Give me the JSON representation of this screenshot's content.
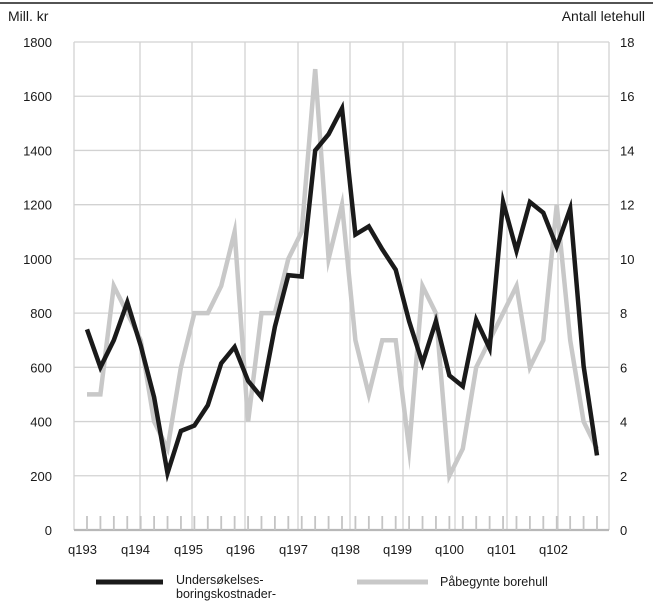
{
  "chart_data": {
    "type": "line",
    "title": "",
    "y_left_label": "Mill. kr",
    "y_right_label": "Antall letehull",
    "y_left_ticks": [
      "0",
      "200",
      "400",
      "600",
      "800",
      "1000",
      "1200",
      "1400",
      "1600",
      "1800"
    ],
    "y_right_ticks": [
      "0",
      "2",
      "4",
      "6",
      "8",
      "10",
      "12",
      "14",
      "16",
      "18"
    ],
    "ylim_left": [
      0,
      1800
    ],
    "ylim_right": [
      0,
      18
    ],
    "x_tick_labels": [
      "q193",
      "q194",
      "q195",
      "q196",
      "q197",
      "q198",
      "q199",
      "q100",
      "q101",
      "q102"
    ],
    "grid": true,
    "legend_position": "bottom",
    "series": [
      {
        "name": "Undersøkelses-boringskostnader-",
        "legend_lines": [
          "Undersøkelses-",
          "boringskostnader-"
        ],
        "axis": "left",
        "color": "#1a1a1a",
        "values": [
          740,
          600,
          700,
          840,
          680,
          490,
          210,
          365,
          385,
          460,
          615,
          675,
          550,
          490,
          750,
          940,
          935,
          1400,
          1460,
          1555,
          1090,
          1120,
          1035,
          960,
          770,
          615,
          770,
          570,
          530,
          775,
          670,
          1210,
          1030,
          1210,
          1170,
          1045,
          1185,
          605,
          275
        ]
      },
      {
        "name": "Påbegynte borehull",
        "axis": "right",
        "color": "#c8c8c8",
        "values": [
          5,
          5,
          9,
          8,
          7,
          4,
          3,
          6,
          8,
          8,
          9,
          11,
          4,
          8,
          8,
          10,
          11,
          17,
          10,
          12,
          7,
          5,
          7,
          7,
          3,
          9,
          8,
          2,
          3,
          6,
          7,
          8,
          9,
          6,
          7,
          12,
          7,
          4,
          3
        ]
      }
    ]
  }
}
